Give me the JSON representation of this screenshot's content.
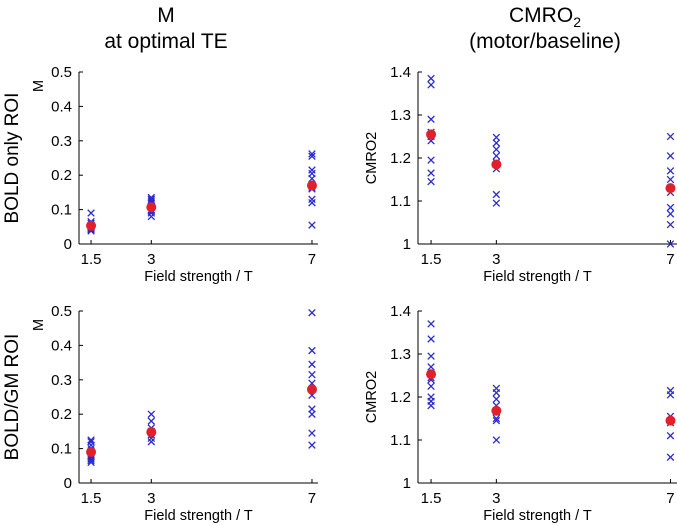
{
  "column_titles": [
    {
      "line1": "M",
      "line2": "at optimal TE"
    },
    {
      "line1_main": "CMRO",
      "line1_sub": "2",
      "line2": "(motor/baseline)"
    }
  ],
  "row_labels": [
    "BOLD only ROI",
    "BOLD/GM ROI"
  ],
  "colors": {
    "individual": "#2a2ad0",
    "mean": "#e0202a",
    "axis": "#000000"
  },
  "chart_data": [
    {
      "type": "scatter",
      "xlabel": "Field strength / T",
      "ylabel": "M",
      "x_ticks": [
        1.5,
        3,
        7
      ],
      "x_tick_labels": [
        "1.5",
        "3",
        "7"
      ],
      "xlim": [
        1.2,
        7.15
      ],
      "ylim": [
        0,
        0.5
      ],
      "y_ticks": [
        0,
        0.1,
        0.2,
        0.3,
        0.4,
        0.5
      ],
      "y_tick_labels": [
        "0",
        "0.1",
        "0.2",
        "0.3",
        "0.4",
        "0.5"
      ],
      "individual": [
        {
          "x": 1.5,
          "y": [
            0.09,
            0.065,
            0.06,
            0.055,
            0.05,
            0.048,
            0.045,
            0.042,
            0.038
          ]
        },
        {
          "x": 3,
          "y": [
            0.135,
            0.13,
            0.125,
            0.12,
            0.11,
            0.1,
            0.095,
            0.09,
            0.08
          ]
        },
        {
          "x": 7,
          "y": [
            0.262,
            0.255,
            0.215,
            0.205,
            0.19,
            0.165,
            0.16,
            0.13,
            0.12,
            0.055
          ]
        }
      ],
      "mean": [
        {
          "x": 1.5,
          "y": 0.053
        },
        {
          "x": 3,
          "y": 0.107
        },
        {
          "x": 7,
          "y": 0.17
        }
      ]
    },
    {
      "type": "scatter",
      "xlabel": "Field strength / T",
      "ylabel": "CMRO2",
      "x_ticks": [
        1.5,
        3,
        7
      ],
      "x_tick_labels": [
        "1.5",
        "3",
        "7"
      ],
      "xlim": [
        1.2,
        7.15
      ],
      "ylim": [
        1,
        1.4
      ],
      "y_ticks": [
        1,
        1.1,
        1.2,
        1.3,
        1.4
      ],
      "y_tick_labels": [
        "1",
        "1.1",
        "1.2",
        "1.3",
        "1.4"
      ],
      "individual": [
        {
          "x": 1.5,
          "y": [
            1.385,
            1.37,
            1.29,
            1.26,
            1.25,
            1.24,
            1.195,
            1.165,
            1.145
          ]
        },
        {
          "x": 3,
          "y": [
            1.248,
            1.235,
            1.22,
            1.205,
            1.19,
            1.175,
            1.115,
            1.095
          ]
        },
        {
          "x": 7,
          "y": [
            1.25,
            1.205,
            1.17,
            1.15,
            1.12,
            1.085,
            1.07,
            1.045,
            1.0
          ]
        }
      ],
      "mean": [
        {
          "x": 1.5,
          "y": 1.255
        },
        {
          "x": 3,
          "y": 1.185
        },
        {
          "x": 7,
          "y": 1.13
        }
      ]
    },
    {
      "type": "scatter",
      "xlabel": "Field strength / T",
      "ylabel": "M",
      "x_ticks": [
        1.5,
        3,
        7
      ],
      "x_tick_labels": [
        "1.5",
        "3",
        "7"
      ],
      "xlim": [
        1.2,
        7.15
      ],
      "ylim": [
        0,
        0.5
      ],
      "y_ticks": [
        0,
        0.1,
        0.2,
        0.3,
        0.4,
        0.5
      ],
      "y_tick_labels": [
        "0",
        "0.1",
        "0.2",
        "0.3",
        "0.4",
        "0.5"
      ],
      "individual": [
        {
          "x": 1.5,
          "y": [
            0.125,
            0.12,
            0.11,
            0.1,
            0.09,
            0.08,
            0.075,
            0.07,
            0.065,
            0.06
          ]
        },
        {
          "x": 3,
          "y": [
            0.2,
            0.18,
            0.16,
            0.15,
            0.14,
            0.13,
            0.12
          ]
        },
        {
          "x": 7,
          "y": [
            0.495,
            0.385,
            0.345,
            0.315,
            0.29,
            0.255,
            0.215,
            0.2,
            0.145,
            0.11
          ]
        }
      ],
      "mean": [
        {
          "x": 1.5,
          "y": 0.09
        },
        {
          "x": 3,
          "y": 0.148
        },
        {
          "x": 7,
          "y": 0.272
        }
      ]
    },
    {
      "type": "scatter",
      "xlabel": "Field strength / T",
      "ylabel": "CMRO2",
      "x_ticks": [
        1.5,
        3,
        7
      ],
      "x_tick_labels": [
        "1.5",
        "3",
        "7"
      ],
      "xlim": [
        1.2,
        7.15
      ],
      "ylim": [
        1,
        1.4
      ],
      "y_ticks": [
        1,
        1.1,
        1.2,
        1.3,
        1.4
      ],
      "y_tick_labels": [
        "1",
        "1.1",
        "1.2",
        "1.3",
        "1.4"
      ],
      "individual": [
        {
          "x": 1.5,
          "y": [
            1.37,
            1.335,
            1.295,
            1.27,
            1.245,
            1.24,
            1.225,
            1.2,
            1.19,
            1.18
          ]
        },
        {
          "x": 3,
          "y": [
            1.22,
            1.21,
            1.195,
            1.18,
            1.165,
            1.15,
            1.145,
            1.1
          ]
        },
        {
          "x": 7,
          "y": [
            1.215,
            1.205,
            1.155,
            1.145,
            1.14,
            1.11,
            1.06
          ]
        }
      ],
      "mean": [
        {
          "x": 1.5,
          "y": 1.253
        },
        {
          "x": 3,
          "y": 1.168
        },
        {
          "x": 7,
          "y": 1.145
        }
      ]
    }
  ]
}
